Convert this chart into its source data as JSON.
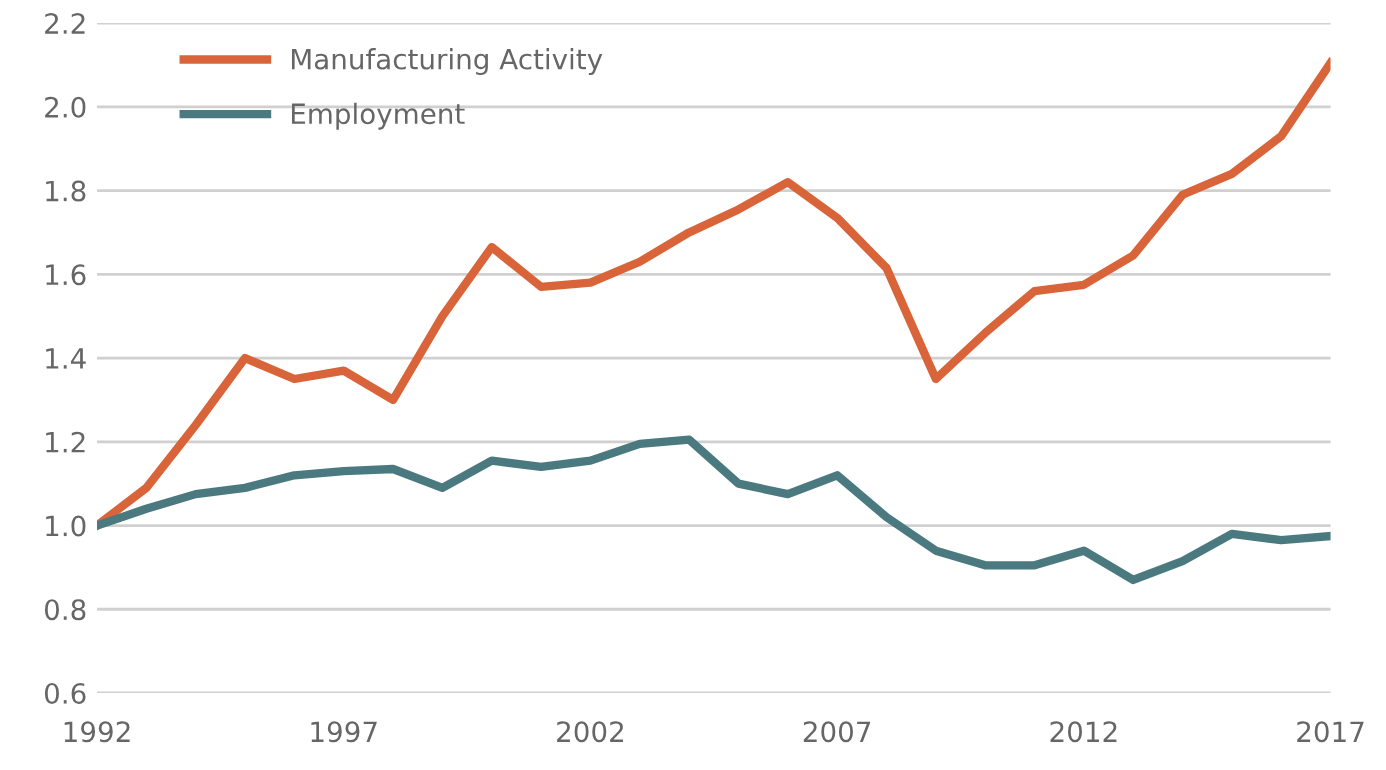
{
  "chart_data": {
    "type": "line",
    "x": [
      1992,
      1993,
      1994,
      1995,
      1996,
      1997,
      1998,
      1999,
      2000,
      2001,
      2002,
      2003,
      2004,
      2005,
      2006,
      2007,
      2008,
      2009,
      2010,
      2011,
      2012,
      2013,
      2014,
      2015,
      2016,
      2017
    ],
    "series": [
      {
        "name": "Manufacturing Activity",
        "color": "#d9643a",
        "values": [
          1.0,
          1.09,
          1.24,
          1.4,
          1.35,
          1.37,
          1.3,
          1.5,
          1.665,
          1.57,
          1.58,
          1.63,
          1.7,
          1.755,
          1.82,
          1.735,
          1.615,
          1.35,
          1.46,
          1.56,
          1.575,
          1.645,
          1.79,
          1.84,
          1.93,
          2.105
        ]
      },
      {
        "name": "Employment",
        "color": "#4a7a80",
        "values": [
          1.0,
          1.04,
          1.075,
          1.09,
          1.12,
          1.13,
          1.135,
          1.09,
          1.155,
          1.14,
          1.155,
          1.195,
          1.205,
          1.1,
          1.075,
          1.12,
          1.02,
          0.94,
          0.905,
          0.905,
          0.94,
          0.87,
          0.915,
          0.98,
          0.965,
          0.975
        ]
      }
    ],
    "xlim": [
      1992,
      2017
    ],
    "xticks": [
      1992,
      1997,
      2002,
      2007,
      2012,
      2017
    ],
    "ylim": [
      0.6,
      2.2
    ],
    "yticks": [
      0.6,
      0.8,
      {
        "value": 1.0,
        "label": "1.0"
      },
      1.2,
      1.4,
      1.6,
      1.8,
      {
        "value": 2.0,
        "label": "2.0"
      },
      2.2
    ],
    "grid": "y",
    "legend": "top left",
    "marker": "none",
    "line_style": "solid"
  }
}
